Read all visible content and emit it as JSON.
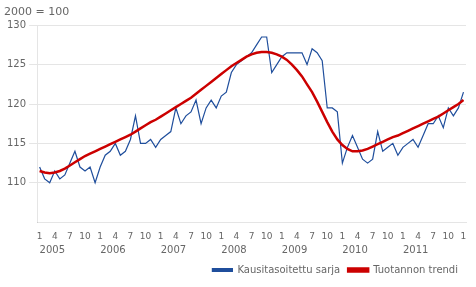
{
  "chart_data": {
    "type": "line",
    "title": "2000 = 100",
    "categories": [
      "1",
      null,
      null,
      "4",
      null,
      null,
      "7",
      null,
      null,
      "10",
      null,
      null,
      "1",
      null,
      null,
      "4",
      null,
      null,
      "7",
      null,
      null,
      "10",
      null,
      null,
      "1",
      null,
      null,
      "4",
      null,
      null,
      "7",
      null,
      null,
      "10",
      null,
      null,
      "1",
      null,
      null,
      "4",
      null,
      null,
      "7",
      null,
      null,
      "10",
      null,
      null,
      "1",
      null,
      null,
      "4",
      null,
      null,
      "7",
      null,
      null,
      "10",
      null,
      null,
      "1",
      null,
      null,
      "4",
      null,
      null,
      "7",
      null,
      null,
      "10",
      null,
      null,
      "1",
      null,
      null,
      "4",
      null,
      null,
      "7",
      null,
      null,
      "10",
      null,
      null,
      "1"
    ],
    "series": [
      {
        "name": "Kausitasoitettu sarja",
        "color": "#1f4e9c",
        "values": [
          112.0,
          110.5,
          110.0,
          111.5,
          110.5,
          111.0,
          112.5,
          114.0,
          112.0,
          111.5,
          112.0,
          110.0,
          112.0,
          113.5,
          114.0,
          115.0,
          113.5,
          114.0,
          115.5,
          118.5,
          115.0,
          115.0,
          115.5,
          114.5,
          115.5,
          116.0,
          116.5,
          119.5,
          117.5,
          118.5,
          119.0,
          120.5,
          117.5,
          119.5,
          120.5,
          119.5,
          121.0,
          121.5,
          124.0,
          125.0,
          125.5,
          126.0,
          126.5,
          127.5,
          128.5,
          128.5,
          124.0,
          125.0,
          126.0,
          126.5,
          126.5,
          126.5,
          126.5,
          125.0,
          127.0,
          126.5,
          125.5,
          119.5,
          119.5,
          119.0,
          112.5,
          114.5,
          116.0,
          114.5,
          113.0,
          112.5,
          113.0,
          116.5,
          114.0,
          114.5,
          115.0,
          113.5,
          114.5,
          115.0,
          115.5,
          114.5,
          116.0,
          117.5,
          117.5,
          118.5,
          117.0,
          119.5,
          118.5,
          119.5,
          121.5
        ]
      },
      {
        "name": "Tuotannon trendi",
        "color": "#cc0000",
        "values": [
          111.5,
          111.3,
          111.2,
          111.3,
          111.5,
          111.8,
          112.2,
          112.6,
          113.0,
          113.4,
          113.7,
          114.0,
          114.3,
          114.6,
          114.9,
          115.2,
          115.5,
          115.8,
          116.1,
          116.5,
          116.9,
          117.3,
          117.7,
          118.0,
          118.4,
          118.8,
          119.2,
          119.6,
          120.0,
          120.4,
          120.8,
          121.3,
          121.8,
          122.3,
          122.8,
          123.3,
          123.8,
          124.3,
          124.8,
          125.2,
          125.6,
          126.0,
          126.3,
          126.5,
          126.6,
          126.6,
          126.5,
          126.3,
          126.0,
          125.6,
          125.0,
          124.3,
          123.5,
          122.5,
          121.5,
          120.3,
          119.0,
          117.7,
          116.5,
          115.5,
          114.8,
          114.3,
          114.0,
          114.0,
          114.1,
          114.3,
          114.6,
          114.9,
          115.2,
          115.5,
          115.8,
          116.0,
          116.3,
          116.6,
          116.9,
          117.2,
          117.5,
          117.8,
          118.1,
          118.4,
          118.8,
          119.2,
          119.6,
          120.0,
          120.5
        ]
      }
    ],
    "annotations": [
      {
        "text": "2005",
        "x": 0
      },
      {
        "text": "2006",
        "x": 12
      },
      {
        "text": "2007",
        "x": 24
      },
      {
        "text": "2008",
        "x": 36
      },
      {
        "text": "2009",
        "x": 48
      },
      {
        "text": "2010",
        "x": 60
      },
      {
        "text": "2011",
        "x": 72
      }
    ],
    "ylim": [
      105,
      130
    ],
    "yticks": [
      110,
      115,
      120,
      125,
      130
    ],
    "grid": true,
    "legend": "lower right"
  }
}
